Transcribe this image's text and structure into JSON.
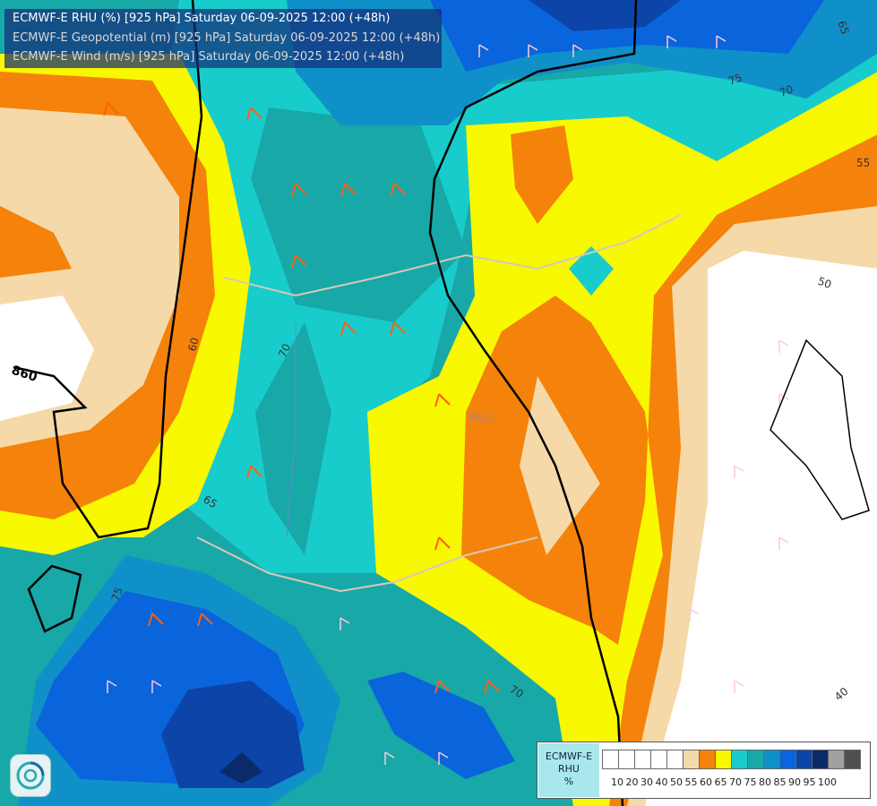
{
  "header": {
    "line1": "ECMWF-E RHU (%) [925 hPa] Saturday 06-09-2025 12:00 (+48h)",
    "line2": "ECMWF-E Geopotential (m) [925 hPa] Saturday 06-09-2025 12:00 (+48h)",
    "line3": "ECMWF-E Wind (m/s) [925 hPa] Saturday 06-09-2025 12:00 (+48h)"
  },
  "map_labels": {
    "contour_860": "860",
    "rh_65_topright": "65",
    "rh_75_top": "75",
    "rh_70_top": "70",
    "rh_55_right": "55",
    "rh_50_right": "50",
    "rh_60_left": "60",
    "rh_70_center": "70",
    "rh_65_lower": "65",
    "rh_75_lower": "75",
    "rh_70_bottom": "70",
    "rh_40_bottomright": "40",
    "city_pecs": "Pécs"
  },
  "legend": {
    "title_line1": "ECMWF-E",
    "title_line2": "RHU",
    "title_line3": "%",
    "ticks": [
      "10",
      "20",
      "30",
      "40",
      "50",
      "55",
      "60",
      "65",
      "70",
      "75",
      "80",
      "85",
      "90",
      "95",
      "100"
    ],
    "colors": [
      "#ffffff",
      "#ffffff",
      "#ffffff",
      "#ffffff",
      "#ffffff",
      "#f5d9a8",
      "#f5820a",
      "#f8f800",
      "#18cccc",
      "#18a8a8",
      "#1090c8",
      "#0a64dc",
      "#0c44a8",
      "#0a2a6a",
      "#a0a0a0",
      "#505050"
    ]
  },
  "logo": {
    "icon": "ecmwf-swirl-icon"
  }
}
